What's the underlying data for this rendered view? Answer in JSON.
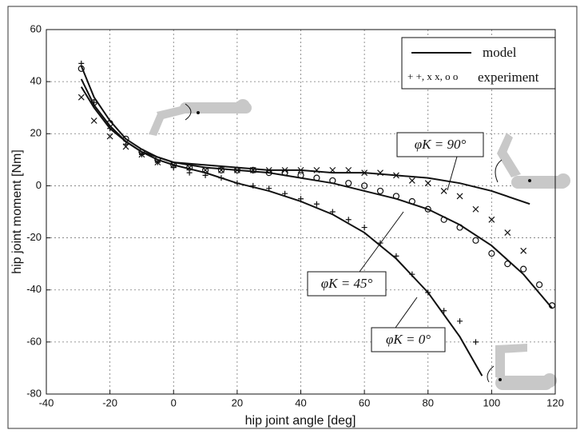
{
  "chart_data": {
    "type": "line",
    "xlabel": "hip joint angle [deg]",
    "ylabel": "hip joint moment [Nm]",
    "xlim": [
      -40,
      120
    ],
    "xticks": [
      -40,
      -20,
      0,
      20,
      40,
      60,
      80,
      100,
      120
    ],
    "ylim": [
      -80,
      60
    ],
    "yticks": [
      -80,
      -60,
      -40,
      -20,
      0,
      20,
      40,
      60
    ],
    "grid": true,
    "legend": {
      "position": "upper right",
      "model_label": "model",
      "experiment_symbols": "+ +, x x, o o",
      "experiment_label": "experiment"
    },
    "models": [
      {
        "label": "φK = 0°",
        "color": "#111",
        "x": [
          -29,
          -25,
          -20,
          -15,
          -10,
          -5,
          0,
          10,
          20,
          30,
          40,
          50,
          60,
          70,
          80,
          90,
          97
        ],
        "values": [
          41,
          31,
          23,
          17,
          13,
          10,
          8,
          5,
          1,
          -2,
          -6,
          -11,
          -18,
          -28,
          -41,
          -58,
          -73
        ]
      },
      {
        "label": "φK = 45°",
        "color": "#111",
        "x": [
          -29,
          -25,
          -20,
          -15,
          -10,
          -5,
          0,
          10,
          20,
          30,
          40,
          50,
          60,
          70,
          80,
          90,
          100,
          110,
          119
        ],
        "values": [
          46,
          34,
          25,
          18,
          14,
          11,
          9,
          7,
          6,
          5,
          3,
          1,
          -2,
          -5,
          -9,
          -15,
          -23,
          -34,
          -47
        ]
      },
      {
        "label": "φK = 90°",
        "color": "#111",
        "x": [
          -29,
          -25,
          -20,
          -15,
          -10,
          -5,
          0,
          10,
          20,
          30,
          40,
          50,
          60,
          70,
          80,
          90,
          100,
          112
        ],
        "values": [
          38,
          30,
          22,
          17,
          13,
          11,
          9,
          8,
          7,
          6,
          6,
          5,
          5,
          4,
          3,
          1,
          -2,
          -7
        ]
      }
    ],
    "experiments": [
      {
        "marker": "+",
        "color": "#111",
        "x": [
          -29,
          -25,
          -20,
          -15,
          -10,
          -5,
          0,
          5,
          10,
          15,
          20,
          25,
          30,
          35,
          40,
          45,
          50,
          55,
          60,
          65,
          70,
          75,
          80,
          85,
          90,
          95
        ],
        "values": [
          47,
          32,
          22,
          16,
          12,
          9,
          7,
          5,
          4,
          3,
          1,
          0,
          -1,
          -3,
          -5,
          -7,
          -10,
          -13,
          -16,
          -22,
          -27,
          -34,
          -41,
          -48,
          -52,
          -60
        ]
      },
      {
        "marker": "o",
        "color": "#111",
        "x": [
          -29,
          -25,
          -20,
          -15,
          -10,
          -5,
          0,
          5,
          10,
          15,
          20,
          25,
          30,
          35,
          40,
          45,
          50,
          55,
          60,
          65,
          70,
          75,
          80,
          85,
          90,
          95,
          100,
          105,
          110,
          115,
          119
        ],
        "values": [
          45,
          32,
          24,
          18,
          13,
          10,
          8,
          7,
          6,
          6,
          6,
          6,
          5,
          5,
          4,
          3,
          2,
          1,
          0,
          -2,
          -4,
          -6,
          -9,
          -13,
          -16,
          -21,
          -26,
          -30,
          -32,
          -38,
          -46
        ]
      },
      {
        "marker": "x",
        "color": "#111",
        "x": [
          -29,
          -25,
          -20,
          -15,
          -10,
          -5,
          0,
          5,
          10,
          15,
          20,
          25,
          30,
          35,
          40,
          45,
          50,
          55,
          60,
          65,
          70,
          75,
          80,
          85,
          90,
          95,
          100,
          105,
          110
        ],
        "values": [
          34,
          25,
          19,
          15,
          12,
          9,
          8,
          7,
          6,
          6,
          6,
          6,
          6,
          6,
          6,
          6,
          6,
          6,
          5,
          5,
          4,
          2,
          1,
          -2,
          -4,
          -9,
          -13,
          -18,
          -25
        ]
      }
    ]
  }
}
